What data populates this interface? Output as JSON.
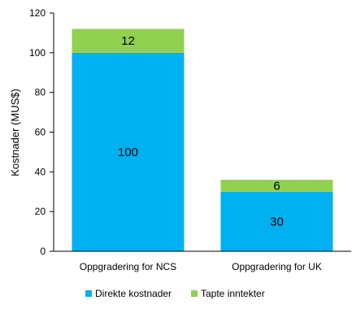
{
  "chart_data": {
    "type": "bar",
    "stacked": true,
    "categories": [
      "Oppgradering for NCS",
      "Oppgradering for UK"
    ],
    "series": [
      {
        "name": "Direkte kostnader",
        "values": [
          100,
          30
        ],
        "color": "#00B0F0"
      },
      {
        "name": "Tapte inntekter",
        "values": [
          12,
          6
        ],
        "color": "#92D050"
      }
    ],
    "ylabel": "Kostnader (MUS$)",
    "xlabel": "",
    "ylim": [
      0,
      120
    ],
    "yticks": [
      0,
      20,
      40,
      60,
      80,
      100,
      120
    ],
    "grid": false,
    "legend_position": "bottom"
  }
}
